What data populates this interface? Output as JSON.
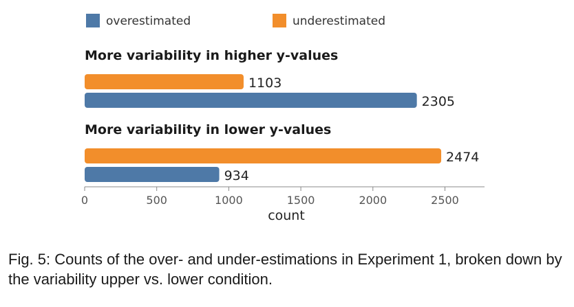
{
  "chart_data": {
    "type": "bar",
    "orientation": "horizontal",
    "xlabel": "count",
    "xlim": [
      0,
      2750
    ],
    "xticks": [
      0,
      500,
      1000,
      1500,
      2000,
      2500
    ],
    "legend": {
      "placement": "top",
      "entries": [
        "overestimated",
        "underestimated"
      ]
    },
    "groups": [
      {
        "title": "More variability in higher y-values",
        "bars": [
          {
            "series": "underestimated",
            "value": 1103
          },
          {
            "series": "overestimated",
            "value": 2305
          }
        ]
      },
      {
        "title": "More variability in lower y-values",
        "bars": [
          {
            "series": "underestimated",
            "value": 2474
          },
          {
            "series": "overestimated",
            "value": 934
          }
        ]
      }
    ],
    "colors": {
      "overestimated": "#4e79a7",
      "underestimated": "#f28e2b"
    },
    "grid": false
  },
  "caption": "Fig. 5: Counts of the over- and under-estimations in Experiment 1, broken down by the variability upper vs. lower condition."
}
